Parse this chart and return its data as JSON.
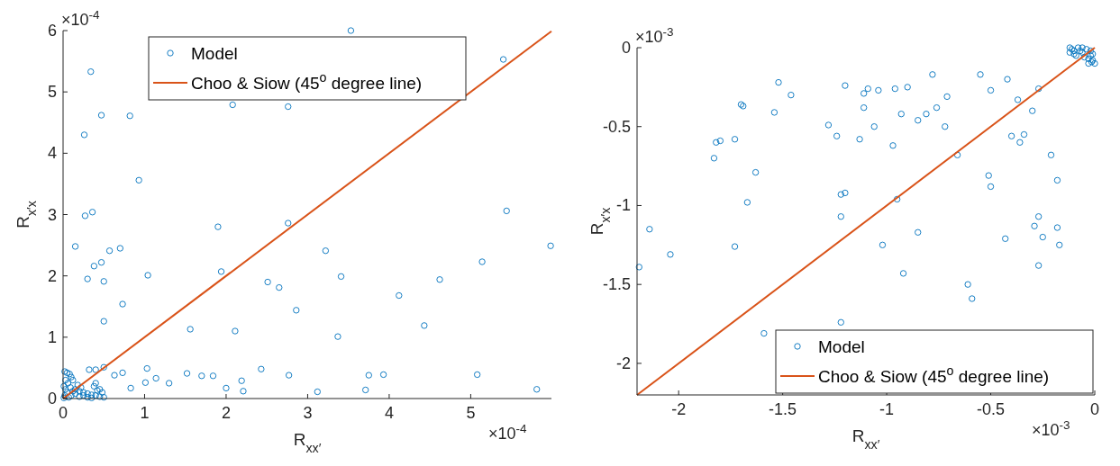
{
  "chart_data": [
    {
      "type": "scatter",
      "xlabel": "R$_{xx′}$",
      "ylabel": "R$_{x′x}$",
      "xlim": [
        0,
        5.99
      ],
      "ylim": [
        0,
        6
      ],
      "xticks": [
        0,
        1,
        2,
        3,
        4,
        5
      ],
      "yticks": [
        0,
        1,
        2,
        3,
        4,
        5,
        6
      ],
      "grid": false,
      "legend": "top",
      "marker": "circle",
      "annotations": [
        "×10$^{-4}$",
        "×10$^{-4}$"
      ],
      "series": [
        {
          "name": "Model",
          "color": "#0072bd",
          "x": [
            3.53,
            0.34,
            0.47,
            0.82,
            0.26,
            0.93,
            2.08,
            2.76,
            5.4,
            0.36,
            0.27,
            1.9,
            2.76,
            5.44,
            0.15,
            0.57,
            0.7,
            3.22,
            5.98,
            5.14,
            0.47,
            0.38,
            1.04,
            1.94,
            0.3,
            0.5,
            2.51,
            2.65,
            3.41,
            4.62,
            4.12,
            0.73,
            2.86,
            0.5,
            1.56,
            2.11,
            4.43,
            3.37,
            0.32,
            0.4,
            0.5,
            0.63,
            0.73,
            1.03,
            1.01,
            0.83,
            1.14,
            1.3,
            1.52,
            1.7,
            1.84,
            2.0,
            2.19,
            2.21,
            2.43,
            2.77,
            3.12,
            3.71,
            3.75,
            3.93,
            5.08,
            5.81,
            0.02,
            0.05,
            0.08,
            0.1,
            0.12,
            0.03,
            0.06,
            0.01,
            0.09,
            0.15,
            0.2,
            0.25,
            0.3,
            0.35,
            0.4,
            0.45,
            0.5,
            0.48,
            0.42,
            0.38,
            0.4,
            0.45,
            0.1,
            0.2,
            0.3,
            0.05,
            0.15,
            0.02,
            0.01,
            0.25,
            0.35,
            0.18,
            0.12,
            0.07,
            0.03,
            0.22
          ],
          "values": [
            6.0,
            5.33,
            4.62,
            4.61,
            4.3,
            3.56,
            4.79,
            4.76,
            5.53,
            3.04,
            2.98,
            2.8,
            2.86,
            3.06,
            2.48,
            2.41,
            2.45,
            2.41,
            2.49,
            2.23,
            2.22,
            2.16,
            2.01,
            2.07,
            1.95,
            1.91,
            1.9,
            1.81,
            1.99,
            1.94,
            1.68,
            1.54,
            1.44,
            1.26,
            1.13,
            1.1,
            1.19,
            1.01,
            0.47,
            0.47,
            0.51,
            0.38,
            0.42,
            0.49,
            0.26,
            0.17,
            0.33,
            0.25,
            0.41,
            0.37,
            0.37,
            0.17,
            0.29,
            0.12,
            0.48,
            0.38,
            0.11,
            0.14,
            0.38,
            0.39,
            0.39,
            0.15,
            0.44,
            0.42,
            0.4,
            0.35,
            0.3,
            0.3,
            0.25,
            0.2,
            0.18,
            0.15,
            0.12,
            0.1,
            0.08,
            0.06,
            0.05,
            0.03,
            0.02,
            0.1,
            0.13,
            0.2,
            0.25,
            0.15,
            0.05,
            0.03,
            0.02,
            0.1,
            0.08,
            0.05,
            0.01,
            0.05,
            0.01,
            0.22,
            0.12,
            0.02,
            0.15,
            0.18
          ]
        },
        {
          "name": "Choo & Siow (45$^{o}$ degree line)",
          "type": "line",
          "marker": "none",
          "color": "#d95319",
          "x": [
            0,
            5.99
          ],
          "values": [
            0,
            5.99
          ]
        }
      ]
    },
    {
      "type": "scatter",
      "xlabel": "R$_{xx′}$",
      "ylabel": "R$_{x′x}$",
      "xlim": [
        -2.2,
        0
      ],
      "ylim": [
        -2.2,
        0
      ],
      "xticks": [
        -2,
        -1.5,
        -1,
        -0.5,
        0
      ],
      "yticks": [
        -2,
        -1.5,
        -1,
        -0.5,
        0
      ],
      "grid": false,
      "legend": "bottom right",
      "marker": "circle",
      "annotations": [
        "×10$^{-3}$",
        "×10$^{-3}$"
      ],
      "series": [
        {
          "name": "Model",
          "color": "#0072bd",
          "x": [
            -1.52,
            -1.46,
            -1.7,
            -1.69,
            -1.54,
            -1.83,
            -1.82,
            -1.8,
            -1.73,
            -1.63,
            -1.67,
            -1.28,
            -1.24,
            -1.2,
            -1.13,
            -1.11,
            -1.09,
            -1.04,
            -1.11,
            -1.06,
            -0.96,
            -0.9,
            -0.97,
            -0.93,
            -0.85,
            -0.81,
            -0.78,
            -0.76,
            -0.71,
            -0.72,
            -0.66,
            -0.55,
            -0.5,
            -0.42,
            -0.37,
            -0.3,
            -0.27,
            -0.4,
            -0.34,
            -0.36,
            -0.21,
            -0.18,
            -0.51,
            -0.5,
            -1.22,
            -1.2,
            -0.95,
            -2.14,
            -2.19,
            -2.04,
            -1.73,
            -1.59,
            -1.22,
            -1.22,
            -1.02,
            -0.92,
            -0.85,
            -0.61,
            -0.59,
            -0.43,
            -0.29,
            -0.27,
            -0.25,
            -0.27,
            -0.18,
            -0.17,
            -0.12,
            -0.1,
            -0.08,
            -0.06,
            -0.04,
            -0.02,
            -0.01,
            0,
            -0.03,
            -0.12,
            -0.09,
            -0.05,
            -0.02,
            -0.11,
            -0.07,
            -0.01,
            -0.015,
            -0.03,
            -0.06,
            -0.1
          ],
          "values": [
            -0.22,
            -0.3,
            -0.36,
            -0.37,
            -0.41,
            -0.7,
            -0.6,
            -0.59,
            -0.58,
            -0.79,
            -0.98,
            -0.49,
            -0.56,
            -0.24,
            -0.58,
            -0.29,
            -0.26,
            -0.27,
            -0.38,
            -0.5,
            -0.26,
            -0.25,
            -0.62,
            -0.42,
            -0.46,
            -0.42,
            -0.17,
            -0.38,
            -0.31,
            -0.5,
            -0.68,
            -0.17,
            -0.27,
            -0.2,
            -0.33,
            -0.4,
            -0.26,
            -0.56,
            -0.55,
            -0.6,
            -0.68,
            -0.84,
            -0.81,
            -0.88,
            -0.93,
            -0.92,
            -0.96,
            -1.15,
            -1.39,
            -1.31,
            -1.26,
            -1.81,
            -1.07,
            -1.74,
            -1.25,
            -1.43,
            -1.17,
            -1.5,
            -1.59,
            -1.21,
            -1.13,
            -1.07,
            -1.2,
            -1.38,
            -1.14,
            -1.25,
            0,
            -0.02,
            0,
            -0.03,
            -0.01,
            -0.05,
            -0.08,
            -0.1,
            -0.1,
            -0.03,
            -0.05,
            -0.06,
            -0.02,
            -0.01,
            -0.02,
            -0.04,
            -0.09,
            -0.07,
            0,
            -0.04
          ]
        },
        {
          "name": "Choo & Siow (45$^{o}$ degree line)",
          "type": "line",
          "marker": "none",
          "color": "#d95319",
          "x": [
            -2.2,
            0
          ],
          "values": [
            -2.2,
            0
          ]
        }
      ]
    }
  ]
}
